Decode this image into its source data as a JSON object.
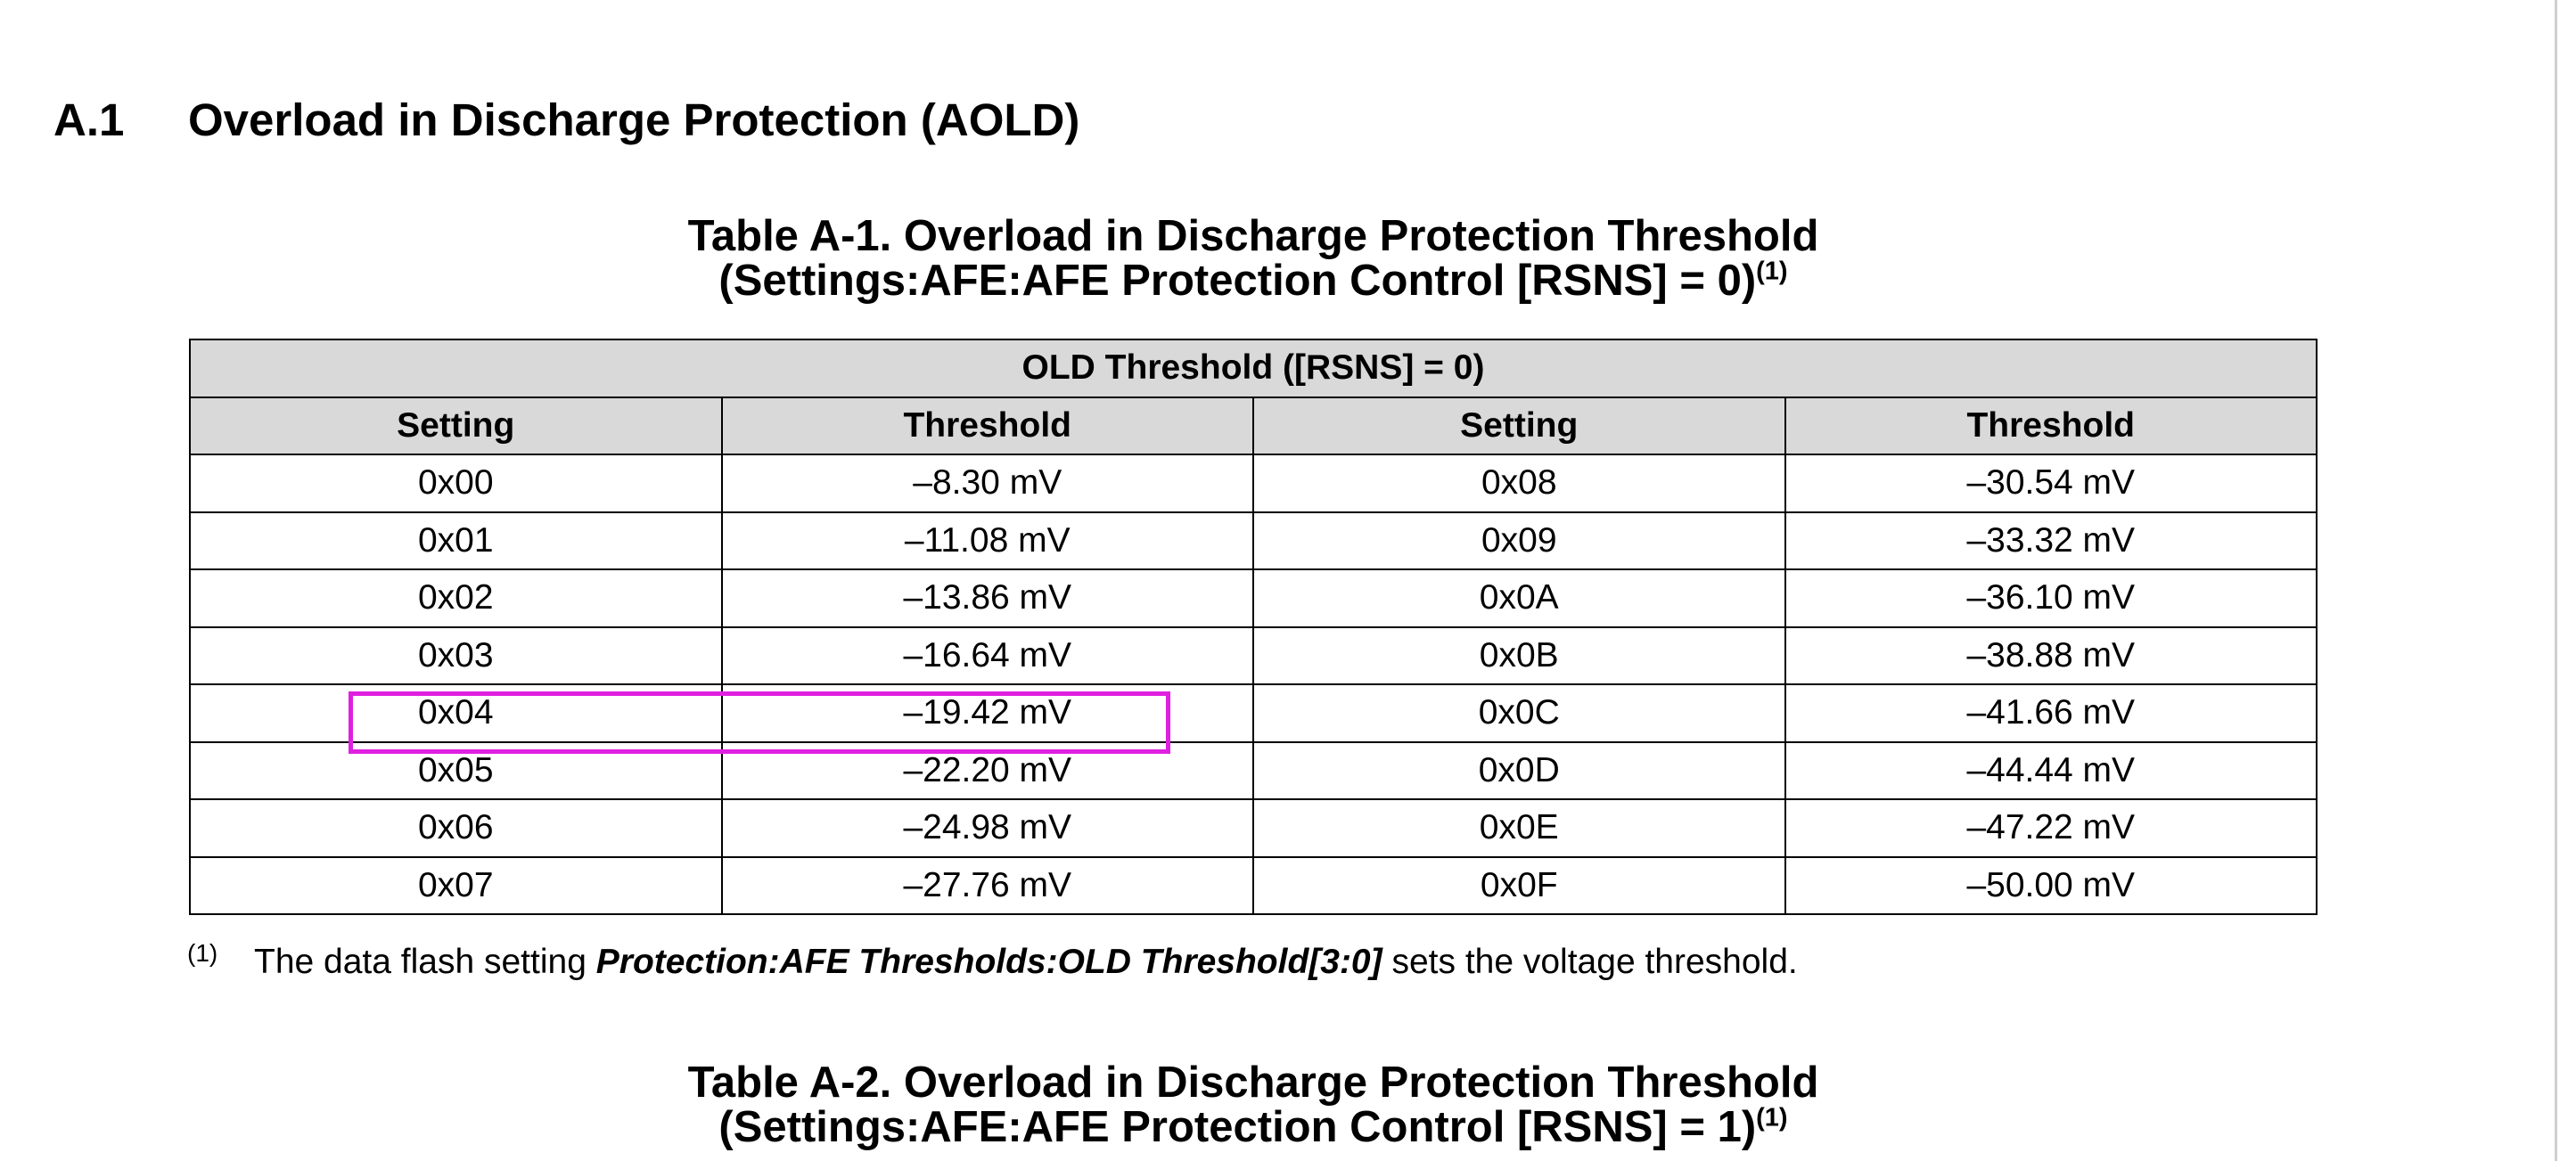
{
  "section": {
    "number": "A.1",
    "title": "Overload in Discharge Protection (AOLD)"
  },
  "table1": {
    "caption_line1": "Table A-1. Overload in Discharge Protection Threshold",
    "caption_line2": "(Settings:AFE:AFE Protection Control [RSNS] = 0)",
    "caption_note_ref": "(1)",
    "group_header": "OLD Threshold ([RSNS] = 0)",
    "columns": [
      "Setting",
      "Threshold",
      "Setting",
      "Threshold"
    ],
    "rows": [
      [
        "0x00",
        "–8.30 mV",
        "0x08",
        "–30.54 mV"
      ],
      [
        "0x01",
        "–11.08 mV",
        "0x09",
        "–33.32 mV"
      ],
      [
        "0x02",
        "–13.86 mV",
        "0x0A",
        "–36.10 mV"
      ],
      [
        "0x03",
        "–16.64 mV",
        "0x0B",
        "–38.88 mV"
      ],
      [
        "0x04",
        "–19.42 mV",
        "0x0C",
        "–41.66 mV"
      ],
      [
        "0x05",
        "–22.20 mV",
        "0x0D",
        "–44.44 mV"
      ],
      [
        "0x06",
        "–24.98 mV",
        "0x0E",
        "–47.22 mV"
      ],
      [
        "0x07",
        "–27.76 mV",
        "0x0F",
        "–50.00 mV"
      ]
    ],
    "highlight_color": "#e020e0"
  },
  "footnote": {
    "marker": "(1)",
    "text_before": "The data flash setting ",
    "emphasis": "Protection:AFE Thresholds:OLD Threshold[3:0]",
    "text_after": " sets the voltage threshold."
  },
  "table2": {
    "caption_line1": "Table A-2. Overload in Discharge Protection Threshold",
    "caption_line2": "(Settings:AFE:AFE Protection Control [RSNS] = 1)",
    "caption_note_ref": "(1)"
  }
}
